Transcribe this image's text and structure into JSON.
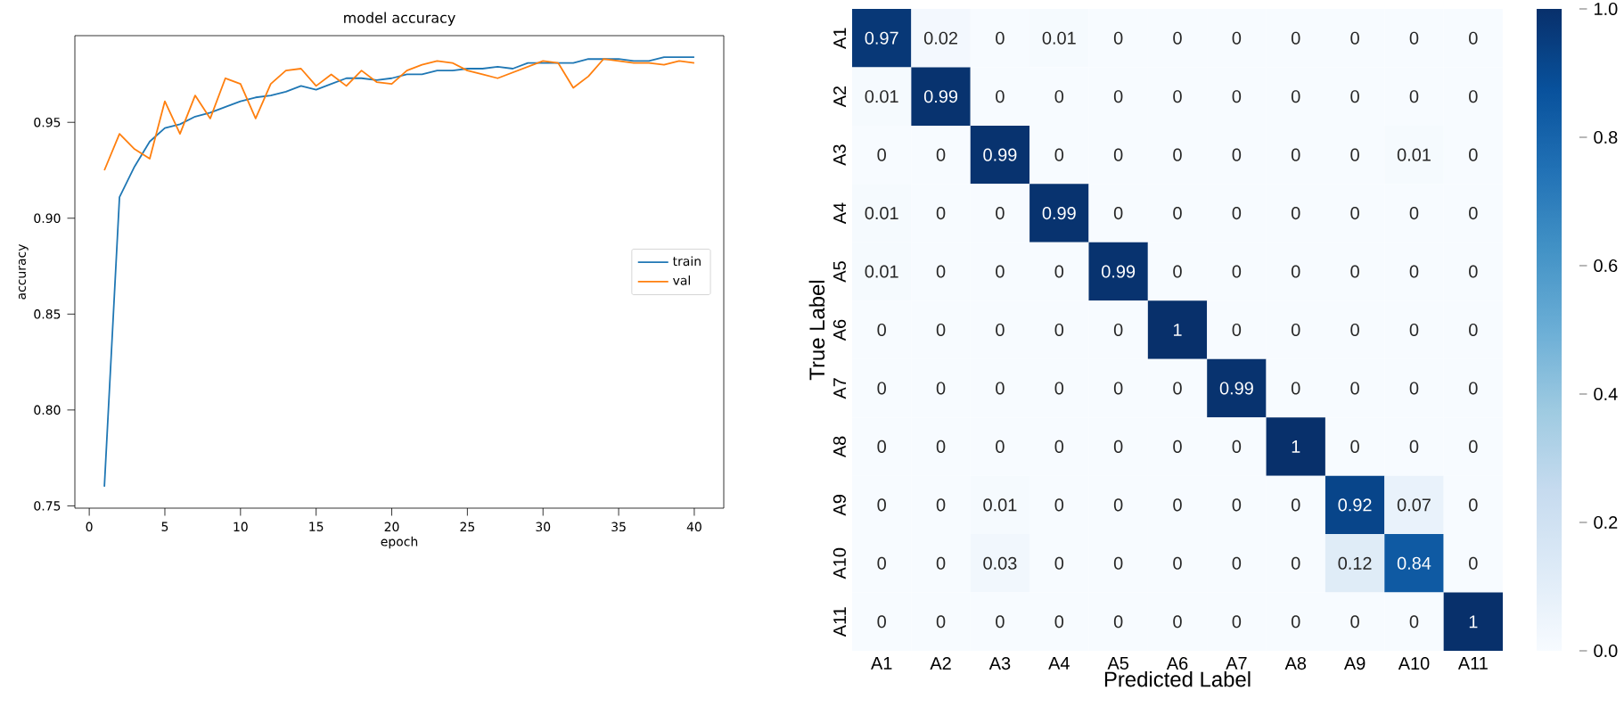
{
  "chart_data": [
    {
      "type": "line",
      "title": "model accuracy",
      "xlabel": "epoch",
      "ylabel": "accuracy",
      "x": [
        1,
        2,
        3,
        4,
        5,
        6,
        7,
        8,
        9,
        10,
        11,
        12,
        13,
        14,
        15,
        16,
        17,
        18,
        19,
        20,
        21,
        22,
        23,
        24,
        25,
        26,
        27,
        28,
        29,
        30,
        31,
        32,
        33,
        34,
        35,
        36,
        37,
        38,
        39,
        40
      ],
      "series": [
        {
          "name": "train",
          "color": "#1f77b4",
          "values": [
            0.76,
            0.911,
            0.927,
            0.94,
            0.947,
            0.949,
            0.953,
            0.955,
            0.958,
            0.961,
            0.963,
            0.964,
            0.966,
            0.969,
            0.967,
            0.97,
            0.973,
            0.973,
            0.972,
            0.973,
            0.975,
            0.975,
            0.977,
            0.977,
            0.978,
            0.978,
            0.979,
            0.978,
            0.981,
            0.981,
            0.981,
            0.981,
            0.983,
            0.983,
            0.983,
            0.982,
            0.982,
            0.984,
            0.984,
            0.984
          ]
        },
        {
          "name": "val",
          "color": "#ff7f0e",
          "values": [
            0.925,
            0.944,
            0.936,
            0.931,
            0.961,
            0.944,
            0.964,
            0.952,
            0.973,
            0.97,
            0.952,
            0.97,
            0.977,
            0.978,
            0.969,
            0.975,
            0.969,
            0.977,
            0.971,
            0.97,
            0.977,
            0.98,
            0.982,
            0.981,
            0.977,
            0.975,
            0.973,
            0.976,
            0.979,
            0.982,
            0.981,
            0.968,
            0.974,
            0.983,
            0.982,
            0.981,
            0.981,
            0.98,
            0.982,
            0.981
          ]
        }
      ],
      "xlim": [
        -0.95,
        41.95
      ],
      "ylim": [
        0.7488,
        0.9952
      ],
      "xticks": [
        0,
        5,
        10,
        15,
        20,
        25,
        30,
        35,
        40
      ],
      "yticks": [
        0.75,
        {
          "value": 0.8,
          "label": "0.80"
        },
        0.85,
        {
          "value": 0.9,
          "label": "0.90"
        },
        0.95
      ],
      "legend": "right"
    },
    {
      "type": "heatmap",
      "xlabel": "Predicted Label",
      "ylabel": "True Label",
      "categories": [
        "A1",
        "A2",
        "A3",
        "A4",
        "A5",
        "A6",
        "A7",
        "A8",
        "A9",
        "A10",
        "A11"
      ],
      "y_categories": [
        "A1",
        "A2",
        "A3",
        "A4",
        "A5",
        "A6",
        "A7",
        "A8",
        "A9",
        "A10",
        "A11"
      ],
      "cells": [
        [
          0.97,
          0.02,
          0,
          0.01,
          0,
          0,
          0,
          0,
          0,
          0,
          0
        ],
        [
          0.01,
          0.99,
          0,
          0,
          0,
          0,
          0,
          0,
          0,
          0,
          0
        ],
        [
          0,
          0,
          0.99,
          0,
          0,
          0,
          0,
          0,
          0,
          0.01,
          0
        ],
        [
          0.01,
          0,
          0,
          0.99,
          0,
          0,
          0,
          0,
          0,
          0,
          0
        ],
        [
          0.01,
          0,
          0,
          0,
          0.99,
          0,
          0,
          0,
          0,
          0,
          0
        ],
        [
          0,
          0,
          0,
          0,
          0,
          1,
          0,
          0,
          0,
          0,
          0
        ],
        [
          0,
          0,
          0,
          0,
          0,
          0,
          0.99,
          0,
          0,
          0,
          0
        ],
        [
          0,
          0,
          0,
          0,
          0,
          0,
          0,
          1,
          0,
          0,
          0
        ],
        [
          0,
          0,
          0.01,
          0,
          0,
          0,
          0,
          0,
          0.92,
          0.07,
          0
        ],
        [
          0,
          0,
          0.03,
          0,
          0,
          0,
          0,
          0,
          0.12,
          0.84,
          0
        ],
        [
          0,
          0,
          0,
          0,
          0,
          0,
          0,
          0,
          0,
          0,
          1
        ]
      ],
      "clim": [
        0,
        1
      ],
      "cticks": [
        {
          "value": 0,
          "label": "0.0"
        },
        {
          "value": 0.2,
          "label": "0.2"
        },
        {
          "value": 0.4,
          "label": "0.4"
        },
        {
          "value": 0.6,
          "label": "0.6"
        },
        {
          "value": 0.8,
          "label": "0.8"
        },
        {
          "value": 1,
          "label": "1.0"
        }
      ],
      "data_labels": true
    }
  ]
}
